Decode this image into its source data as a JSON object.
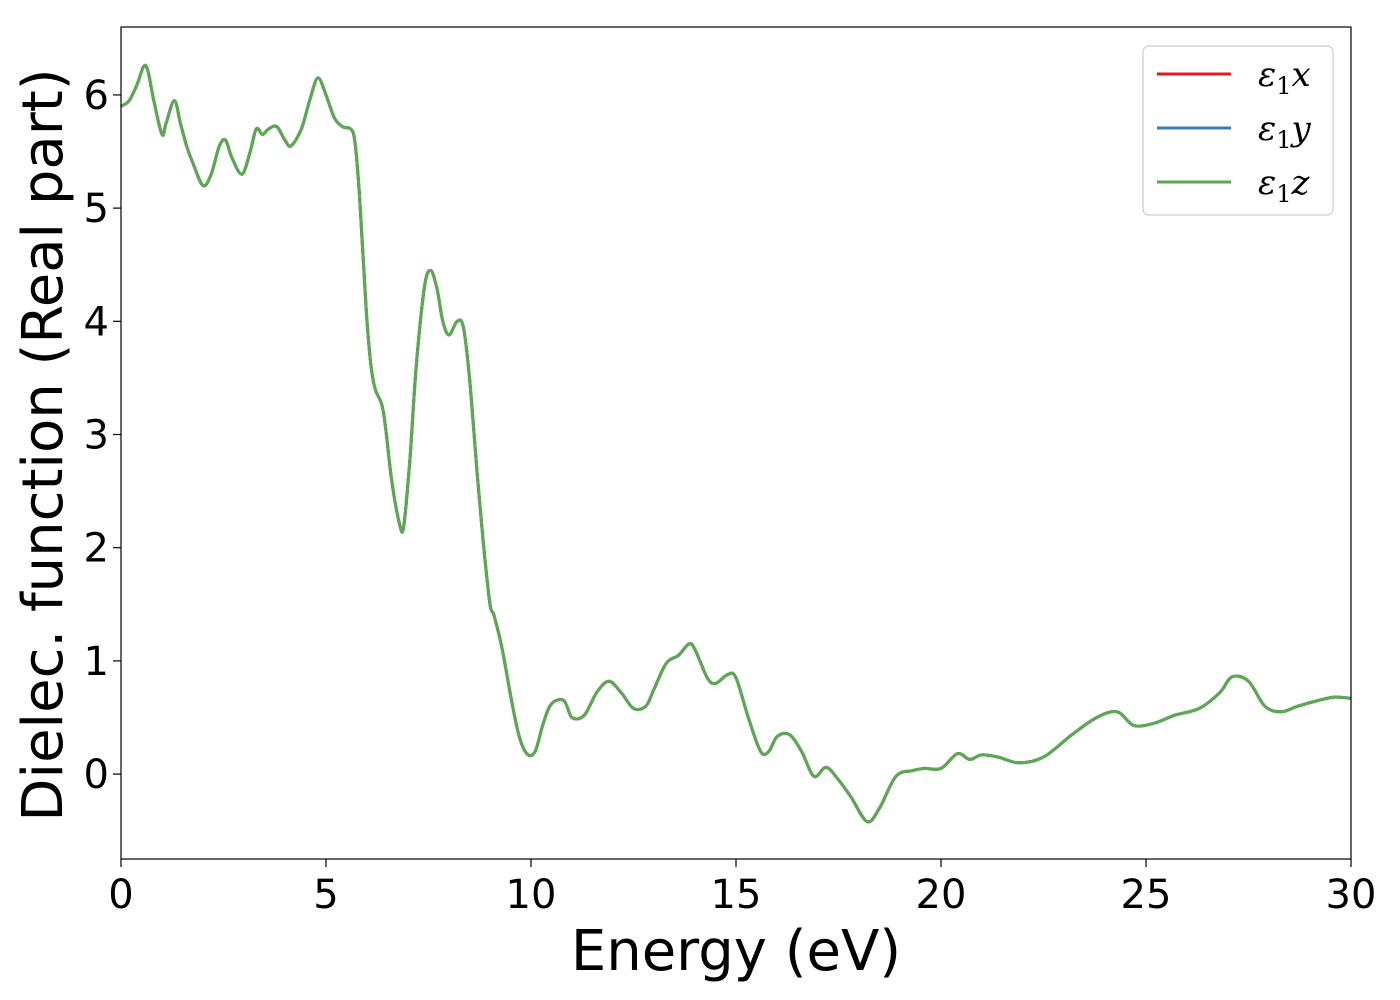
{
  "chart_data": {
    "type": "line",
    "xlabel": "Energy (eV)",
    "ylabel": "Dielec. function (Real part)",
    "xlim": [
      0,
      30
    ],
    "ylim": [
      -0.75,
      6.6
    ],
    "xticks": [
      "0",
      "5",
      "10",
      "15",
      "20",
      "25",
      "30"
    ],
    "yticks": [
      "0",
      "1",
      "2",
      "3",
      "4",
      "5",
      "6"
    ],
    "grid": false,
    "legend_position": "top-right",
    "series": [
      {
        "name": "ε₁x",
        "legend": {
          "symbol": "ε",
          "sub": "1",
          "axis": "x"
        },
        "color": "#e41a1c",
        "x": [
          0,
          0.2,
          0.4,
          0.55,
          0.65,
          0.8,
          1.0,
          1.1,
          1.3,
          1.45,
          1.6,
          1.75,
          2.0,
          2.2,
          2.4,
          2.55,
          2.7,
          2.95,
          3.15,
          3.3,
          3.45,
          3.6,
          3.8,
          4.0,
          4.15,
          4.4,
          4.6,
          4.8,
          5.0,
          5.2,
          5.4,
          5.6,
          5.7,
          5.8,
          5.9,
          6.0,
          6.1,
          6.2,
          6.4,
          6.6,
          6.8,
          6.9,
          7.05,
          7.2,
          7.4,
          7.55,
          7.7,
          7.85,
          8.0,
          8.2,
          8.35,
          8.5,
          8.7,
          8.85,
          9.0,
          9.1,
          9.3,
          9.5,
          9.7,
          9.9,
          10.1,
          10.3,
          10.5,
          10.8,
          11.0,
          11.3,
          11.6,
          11.9,
          12.2,
          12.5,
          12.8,
          13.0,
          13.3,
          13.6,
          13.85,
          14.0,
          14.3,
          14.5,
          14.8,
          15.0,
          15.3,
          15.6,
          15.8,
          16.0,
          16.3,
          16.6,
          16.9,
          17.2,
          17.5,
          17.8,
          18.2,
          18.5,
          18.9,
          19.3,
          19.6,
          20.0,
          20.4,
          20.7,
          21.0,
          21.4,
          21.9,
          22.5,
          23.2,
          23.8,
          24.3,
          24.7,
          25.2,
          25.7,
          26.3,
          26.8,
          27.1,
          27.5,
          27.9,
          28.3,
          28.7,
          29.2,
          29.6,
          30.0
        ],
        "y": [
          5.9,
          5.95,
          6.1,
          6.25,
          6.22,
          5.95,
          5.65,
          5.75,
          5.95,
          5.75,
          5.55,
          5.4,
          5.2,
          5.3,
          5.55,
          5.6,
          5.45,
          5.3,
          5.5,
          5.7,
          5.65,
          5.7,
          5.72,
          5.6,
          5.55,
          5.7,
          5.95,
          6.15,
          6.0,
          5.8,
          5.72,
          5.7,
          5.6,
          5.2,
          4.6,
          4.0,
          3.6,
          3.4,
          3.2,
          2.6,
          2.2,
          2.2,
          2.8,
          3.6,
          4.3,
          4.45,
          4.3,
          4.0,
          3.88,
          4.0,
          3.95,
          3.5,
          2.6,
          2.0,
          1.5,
          1.4,
          1.1,
          0.7,
          0.35,
          0.18,
          0.2,
          0.45,
          0.62,
          0.65,
          0.5,
          0.52,
          0.72,
          0.82,
          0.72,
          0.58,
          0.6,
          0.75,
          0.98,
          1.05,
          1.15,
          1.1,
          0.85,
          0.8,
          0.88,
          0.85,
          0.5,
          0.2,
          0.2,
          0.33,
          0.35,
          0.2,
          -0.02,
          0.06,
          -0.05,
          -0.2,
          -0.42,
          -0.3,
          -0.02,
          0.03,
          0.05,
          0.05,
          0.18,
          0.13,
          0.17,
          0.15,
          0.1,
          0.15,
          0.35,
          0.5,
          0.55,
          0.43,
          0.45,
          0.52,
          0.58,
          0.72,
          0.86,
          0.82,
          0.6,
          0.55,
          0.6,
          0.65,
          0.68,
          0.67
        ]
      },
      {
        "name": "ε₁y",
        "legend": {
          "symbol": "ε",
          "sub": "1",
          "axis": "y"
        },
        "color": "#377eb8",
        "same_as": 0
      },
      {
        "name": "ε₁z",
        "legend": {
          "symbol": "ε",
          "sub": "1",
          "axis": "z"
        },
        "color": "#5aaa50",
        "same_as": 0
      }
    ]
  }
}
